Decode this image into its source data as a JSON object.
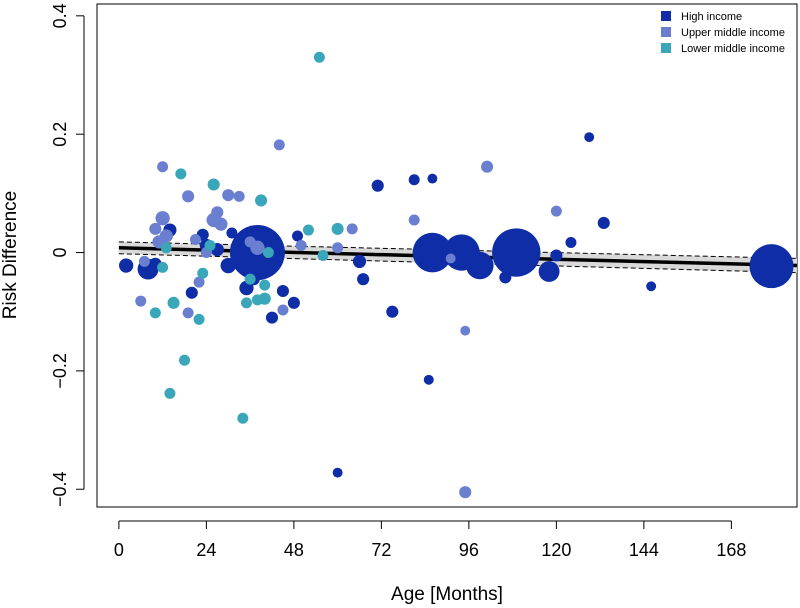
{
  "chart_data": {
    "type": "scatter",
    "title": "",
    "xlabel": "Age [Months]",
    "ylabel": "Risk Difference",
    "xlim": [
      -6,
      186
    ],
    "ylim": [
      -0.43,
      0.42
    ],
    "xticks": [
      0,
      24,
      48,
      72,
      96,
      120,
      144,
      168
    ],
    "yticks": [
      -0.4,
      -0.2,
      0,
      0.2,
      0.4
    ],
    "ytick_labels": [
      "−0.4",
      "−0.2",
      "0",
      "0.2",
      "0.4"
    ],
    "grid": false,
    "legend_position": "top-right",
    "colors": {
      "High income": "#0e2da6",
      "Upper middle income": "#6b7fd1",
      "Lower middle income": "#3aa6b9",
      "fit": "#000000"
    },
    "series": [
      {
        "name": "High income",
        "points": [
          {
            "x": 2,
            "y": -0.022,
            "size": 1.3
          },
          {
            "x": 8,
            "y": -0.028,
            "size": 1.9
          },
          {
            "x": 10,
            "y": -0.02,
            "size": 1.2
          },
          {
            "x": 14,
            "y": 0.038,
            "size": 1.2
          },
          {
            "x": 20,
            "y": -0.068,
            "size": 1.1
          },
          {
            "x": 23,
            "y": 0.03,
            "size": 1.1
          },
          {
            "x": 24,
            "y": 0.012,
            "size": 1.2
          },
          {
            "x": 27,
            "y": 0.005,
            "size": 1.2
          },
          {
            "x": 30,
            "y": -0.022,
            "size": 1.4
          },
          {
            "x": 31,
            "y": 0.033,
            "size": 1.0
          },
          {
            "x": 34,
            "y": 0.0,
            "size": 1.6
          },
          {
            "x": 35,
            "y": -0.06,
            "size": 1.3
          },
          {
            "x": 37,
            "y": -0.045,
            "size": 1.1
          },
          {
            "x": 38,
            "y": 0.0,
            "size": 5.0
          },
          {
            "x": 42,
            "y": -0.11,
            "size": 1.1
          },
          {
            "x": 45,
            "y": -0.065,
            "size": 1.1
          },
          {
            "x": 48,
            "y": -0.085,
            "size": 1.1
          },
          {
            "x": 49,
            "y": 0.028,
            "size": 1.0
          },
          {
            "x": 60,
            "y": -0.372,
            "size": 0.9
          },
          {
            "x": 66,
            "y": -0.015,
            "size": 1.2
          },
          {
            "x": 67,
            "y": -0.045,
            "size": 1.1
          },
          {
            "x": 71,
            "y": 0.113,
            "size": 1.1
          },
          {
            "x": 75,
            "y": -0.1,
            "size": 1.1
          },
          {
            "x": 81,
            "y": 0.123,
            "size": 1.0
          },
          {
            "x": 85,
            "y": -0.215,
            "size": 0.9
          },
          {
            "x": 86,
            "y": 0.125,
            "size": 0.9
          },
          {
            "x": 86,
            "y": 0.0,
            "size": 3.6
          },
          {
            "x": 94,
            "y": 0.0,
            "size": 3.3
          },
          {
            "x": 99,
            "y": -0.022,
            "size": 2.5
          },
          {
            "x": 106,
            "y": -0.042,
            "size": 1.1
          },
          {
            "x": 107,
            "y": -0.01,
            "size": 1.3
          },
          {
            "x": 109,
            "y": 0.0,
            "size": 4.4
          },
          {
            "x": 118,
            "y": -0.032,
            "size": 1.9
          },
          {
            "x": 120,
            "y": -0.005,
            "size": 1.1
          },
          {
            "x": 124,
            "y": 0.017,
            "size": 1.0
          },
          {
            "x": 129,
            "y": 0.195,
            "size": 0.9
          },
          {
            "x": 133,
            "y": 0.05,
            "size": 1.1
          },
          {
            "x": 146,
            "y": -0.057,
            "size": 0.9
          },
          {
            "x": 179,
            "y": -0.023,
            "size": 4.0
          }
        ]
      },
      {
        "name": "Upper middle income",
        "points": [
          {
            "x": 6,
            "y": -0.082,
            "size": 1.0
          },
          {
            "x": 7,
            "y": -0.015,
            "size": 1.0
          },
          {
            "x": 10,
            "y": 0.04,
            "size": 1.1
          },
          {
            "x": 11,
            "y": 0.018,
            "size": 1.2
          },
          {
            "x": 12,
            "y": 0.145,
            "size": 1.0
          },
          {
            "x": 12,
            "y": 0.058,
            "size": 1.3
          },
          {
            "x": 13,
            "y": 0.028,
            "size": 1.2
          },
          {
            "x": 19,
            "y": 0.095,
            "size": 1.1
          },
          {
            "x": 19,
            "y": -0.102,
            "size": 1.0
          },
          {
            "x": 21,
            "y": 0.022,
            "size": 1.0
          },
          {
            "x": 22,
            "y": -0.05,
            "size": 1.0
          },
          {
            "x": 24,
            "y": 0.0,
            "size": 1.0
          },
          {
            "x": 26,
            "y": 0.055,
            "size": 1.3
          },
          {
            "x": 27,
            "y": 0.068,
            "size": 1.1
          },
          {
            "x": 28,
            "y": 0.048,
            "size": 1.2
          },
          {
            "x": 30,
            "y": 0.097,
            "size": 1.1
          },
          {
            "x": 33,
            "y": 0.095,
            "size": 1.0
          },
          {
            "x": 36,
            "y": 0.018,
            "size": 1.0
          },
          {
            "x": 38,
            "y": 0.008,
            "size": 1.3
          },
          {
            "x": 44,
            "y": 0.182,
            "size": 1.0
          },
          {
            "x": 45,
            "y": -0.097,
            "size": 1.0
          },
          {
            "x": 50,
            "y": 0.012,
            "size": 1.0
          },
          {
            "x": 60,
            "y": 0.008,
            "size": 1.0
          },
          {
            "x": 64,
            "y": 0.04,
            "size": 1.0
          },
          {
            "x": 81,
            "y": 0.055,
            "size": 1.0
          },
          {
            "x": 91,
            "y": -0.01,
            "size": 0.9
          },
          {
            "x": 95,
            "y": -0.132,
            "size": 0.9
          },
          {
            "x": 95,
            "y": -0.405,
            "size": 1.1
          },
          {
            "x": 101,
            "y": 0.145,
            "size": 1.1
          },
          {
            "x": 120,
            "y": 0.07,
            "size": 1.0
          }
        ]
      },
      {
        "name": "Lower middle income",
        "points": [
          {
            "x": 10,
            "y": -0.102,
            "size": 1.0
          },
          {
            "x": 12,
            "y": -0.025,
            "size": 1.0
          },
          {
            "x": 13,
            "y": 0.008,
            "size": 1.0
          },
          {
            "x": 14,
            "y": -0.238,
            "size": 1.0
          },
          {
            "x": 15,
            "y": -0.085,
            "size": 1.1
          },
          {
            "x": 17,
            "y": 0.133,
            "size": 1.0
          },
          {
            "x": 18,
            "y": -0.182,
            "size": 1.0
          },
          {
            "x": 22,
            "y": -0.113,
            "size": 1.0
          },
          {
            "x": 23,
            "y": -0.035,
            "size": 1.0
          },
          {
            "x": 25,
            "y": 0.012,
            "size": 1.0
          },
          {
            "x": 26,
            "y": 0.115,
            "size": 1.1
          },
          {
            "x": 34,
            "y": -0.28,
            "size": 1.0
          },
          {
            "x": 35,
            "y": -0.085,
            "size": 1.0
          },
          {
            "x": 36,
            "y": -0.045,
            "size": 1.0
          },
          {
            "x": 38,
            "y": -0.08,
            "size": 1.0
          },
          {
            "x": 40,
            "y": -0.055,
            "size": 1.0
          },
          {
            "x": 40,
            "y": -0.078,
            "size": 1.1
          },
          {
            "x": 39,
            "y": 0.088,
            "size": 1.1
          },
          {
            "x": 41,
            "y": 0.0,
            "size": 1.0
          },
          {
            "x": 52,
            "y": 0.038,
            "size": 1.0
          },
          {
            "x": 55,
            "y": 0.33,
            "size": 1.0
          },
          {
            "x": 56,
            "y": -0.005,
            "size": 1.0
          },
          {
            "x": 60,
            "y": 0.04,
            "size": 1.1
          }
        ]
      }
    ],
    "fit_line": {
      "x": [
        0,
        186
      ],
      "y": [
        0.008,
        -0.022
      ],
      "ci_lower": [
        -0.002,
        -0.034
      ],
      "ci_upper": [
        0.018,
        -0.01
      ]
    }
  }
}
